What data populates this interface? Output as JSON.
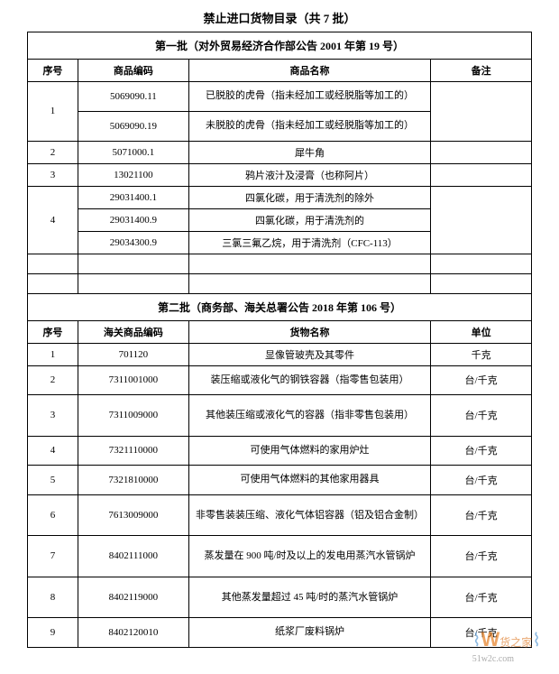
{
  "document_title": "禁止进口货物目录（共 7 批）",
  "batch1": {
    "header": "第一批（对外贸易经济合作部公告 2001 年第 19 号）",
    "columns": [
      "序号",
      "商品编码",
      "商品名称",
      "备注"
    ],
    "rows": [
      {
        "seq": "1",
        "code": "5069090.11",
        "name": "已脱胶的虎骨（指未经加工或经脱脂等加工的）",
        "note": ""
      },
      {
        "seq": "",
        "code": "5069090.19",
        "name": "未脱胶的虎骨（指未经加工或经脱脂等加工的）",
        "note": ""
      },
      {
        "seq": "2",
        "code": "5071000.1",
        "name": "犀牛角",
        "note": ""
      },
      {
        "seq": "3",
        "code": "13021100",
        "name": "鸦片液汁及浸膏（也称阿片）",
        "note": ""
      },
      {
        "seq": "4",
        "code": "29031400.1",
        "name": "四氯化碳，用于清洗剂的除外",
        "note": ""
      },
      {
        "seq": "",
        "code": "29031400.9",
        "name": "四氯化碳，用于清洗剂的",
        "note": ""
      },
      {
        "seq": "",
        "code": "29034300.9",
        "name": "三氯三氟乙烷，用于清洗剂（CFC-113）",
        "note": ""
      }
    ]
  },
  "batch2": {
    "header": "第二批（商务部、海关总署公告 2018 年第 106 号）",
    "columns": [
      "序号",
      "海关商品编码",
      "货物名称",
      "单位"
    ],
    "rows": [
      {
        "seq": "1",
        "code": "701120",
        "name": "显像管玻壳及其零件",
        "note": "千克"
      },
      {
        "seq": "2",
        "code": "7311001000",
        "name": "装压缩或液化气的钢铁容器（指零售包装用）",
        "note": "台/千克"
      },
      {
        "seq": "3",
        "code": "7311009000",
        "name": "其他装压缩或液化气的容器（指非零售包装用）",
        "note": "台/千克"
      },
      {
        "seq": "4",
        "code": "7321110000",
        "name": "可使用气体燃料的家用炉灶",
        "note": "台/千克"
      },
      {
        "seq": "5",
        "code": "7321810000",
        "name": "可使用气体燃料的其他家用器具",
        "note": "台/千克"
      },
      {
        "seq": "6",
        "code": "7613009000",
        "name": "非零售装装压缩、液化气体铝容器（铝及铝合金制）",
        "note": "台/千克"
      },
      {
        "seq": "7",
        "code": "8402111000",
        "name": "蒸发量在 900 吨/时及以上的发电用蒸汽水管锅炉",
        "note": "台/千克"
      },
      {
        "seq": "8",
        "code": "8402119000",
        "name": "其他蒸发量超过 45 吨/时的蒸汽水管锅炉",
        "note": "台/千克"
      },
      {
        "seq": "9",
        "code": "8402120010",
        "name": "纸浆厂废料锅炉",
        "note": "台/千克"
      }
    ]
  },
  "watermark": {
    "text": "货之家",
    "url": "51w2c.com"
  }
}
